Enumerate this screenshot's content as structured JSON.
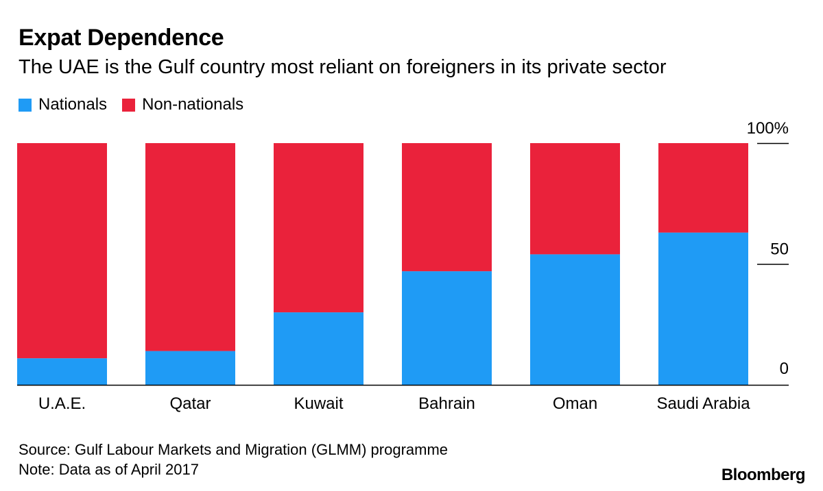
{
  "title": "Expat Dependence",
  "subtitle": "The UAE is the Gulf country most reliant on foreigners in its private sector",
  "legend": [
    {
      "label": "Nationals",
      "color": "#1f9bf5"
    },
    {
      "label": "Non-nationals",
      "color": "#ea223b"
    }
  ],
  "footer": {
    "source": "Source: Gulf Labour Markets and Migration (GLMM) programme",
    "note": "Note: Data as of April 2017"
  },
  "brand": "Bloomberg",
  "chart_data": {
    "type": "bar",
    "stacked": true,
    "categories": [
      "U.A.E.",
      "Qatar",
      "Kuwait",
      "Bahrain",
      "Oman",
      "Saudi Arabia"
    ],
    "series": [
      {
        "name": "Nationals",
        "color": "#1f9bf5",
        "values": [
          11,
          14,
          30,
          47,
          54,
          63
        ]
      },
      {
        "name": "Non-nationals",
        "color": "#ea223b",
        "values": [
          89,
          86,
          70,
          53,
          46,
          37
        ]
      }
    ],
    "ylim": [
      0,
      100
    ],
    "yticks": [
      {
        "value": 100,
        "label": "100%"
      },
      {
        "value": 50,
        "label": "50"
      },
      {
        "value": 0,
        "label": "0"
      }
    ],
    "xlabel": "",
    "ylabel": "",
    "grid": false,
    "legend_position": "top-left"
  }
}
